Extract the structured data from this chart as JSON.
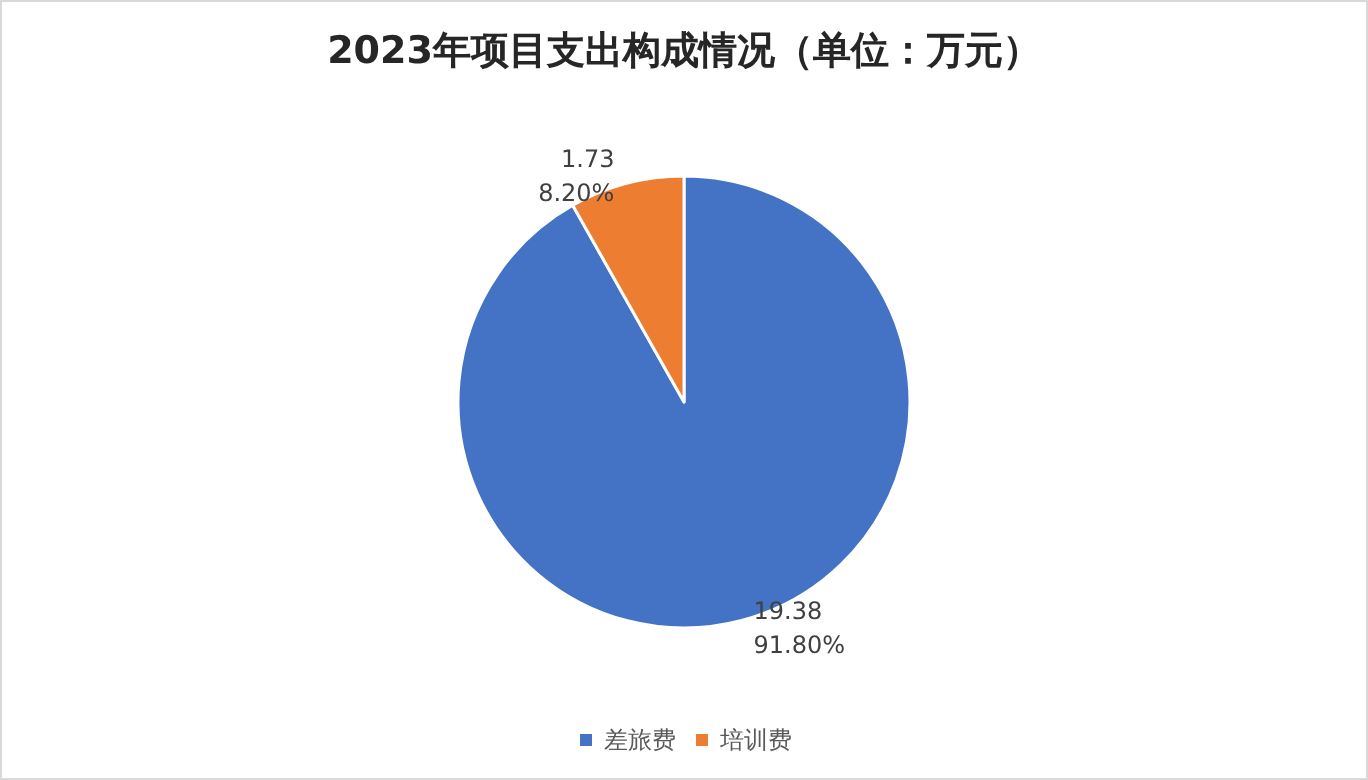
{
  "chart_data": {
    "type": "pie",
    "title": "2023年项目支出构成情况（单位：万元）",
    "categories": [
      "差旅费",
      "培训费"
    ],
    "values": [
      19.38,
      1.73
    ],
    "colors": [
      "#4472c4",
      "#ed7d31"
    ],
    "value_labels": [
      "19.38\n91.80%",
      "1.73\n8.20%"
    ],
    "legend": "bottom"
  }
}
